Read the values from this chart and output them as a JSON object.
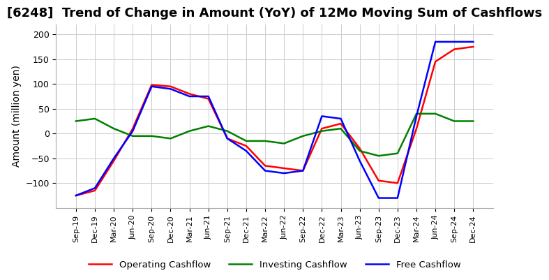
{
  "title": "[6248]  Trend of Change in Amount (YoY) of 12Mo Moving Sum of Cashflows",
  "ylabel": "Amount (million yen)",
  "ylim": [
    -150,
    220
  ],
  "yticks": [
    -100,
    -50,
    0,
    50,
    100,
    150,
    200
  ],
  "x_labels": [
    "Sep-19",
    "Dec-19",
    "Mar-20",
    "Jun-20",
    "Sep-20",
    "Dec-20",
    "Mar-21",
    "Jun-21",
    "Sep-21",
    "Dec-21",
    "Mar-22",
    "Jun-22",
    "Sep-22",
    "Dec-22",
    "Mar-23",
    "Jun-23",
    "Sep-23",
    "Dec-23",
    "Mar-24",
    "Jun-24",
    "Sep-24",
    "Dec-24"
  ],
  "operating": [
    -125,
    -115,
    -55,
    10,
    98,
    95,
    80,
    70,
    -10,
    -25,
    -65,
    -70,
    -75,
    10,
    20,
    -30,
    -95,
    -100,
    10,
    145,
    170,
    175
  ],
  "investing": [
    25,
    30,
    10,
    -5,
    -5,
    -10,
    5,
    15,
    5,
    -15,
    -15,
    -20,
    -5,
    5,
    10,
    -35,
    -45,
    -40,
    40,
    40,
    25,
    25
  ],
  "free": [
    -125,
    -110,
    -50,
    5,
    95,
    90,
    75,
    75,
    -10,
    -35,
    -75,
    -80,
    -75,
    35,
    30,
    -55,
    -130,
    -130,
    35,
    185,
    185,
    185
  ],
  "operating_color": "#ff0000",
  "investing_color": "#008000",
  "free_color": "#0000ff",
  "bg_color": "#ffffff",
  "grid_color": "#cccccc",
  "title_fontsize": 13,
  "label_fontsize": 10
}
